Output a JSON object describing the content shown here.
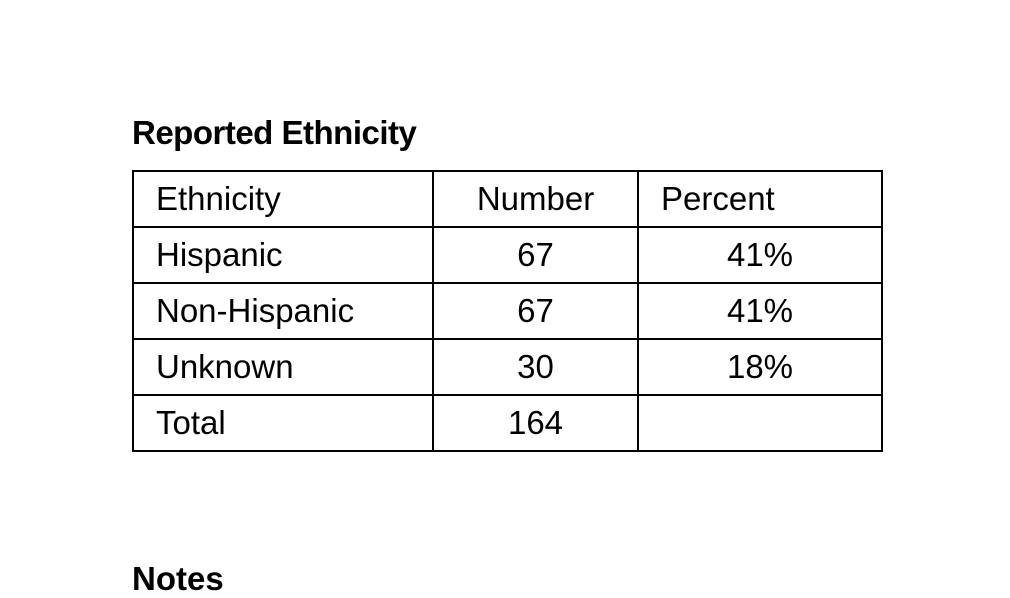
{
  "table": {
    "title": "Reported Ethnicity",
    "header": [
      "Ethnicity",
      "Number",
      "Percent"
    ],
    "rows": [
      [
        "Hispanic",
        67,
        "41%"
      ],
      [
        "Non-Hispanic",
        67,
        "41%"
      ],
      [
        "Unknown",
        30,
        "18%"
      ]
    ],
    "total": [
      "Total",
      164
    ]
  },
  "notes": "Notes"
}
